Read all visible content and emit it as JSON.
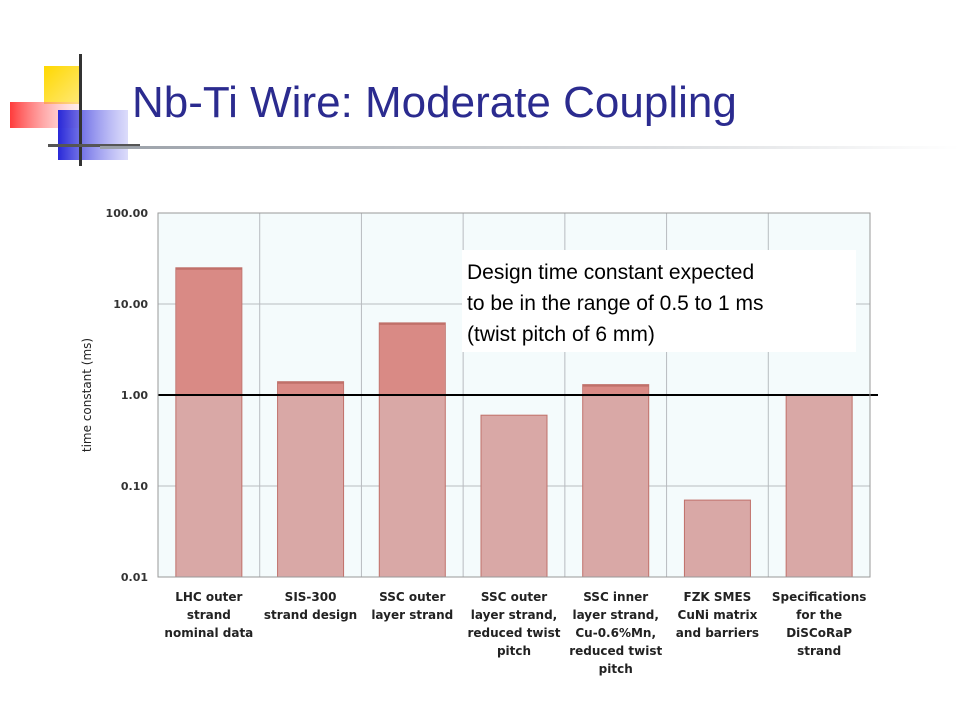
{
  "slide": {
    "title": "Nb-Ti Wire: Moderate Coupling"
  },
  "colors": {
    "title": "#2b2b8f",
    "bar_fill": "#d9a8a6",
    "bar_top_fill": "#d98a85",
    "bar_stroke": "#c0706a",
    "plot_bg": "#f4fbfc",
    "grid": "#b8bcc0",
    "reference_line": "#000000"
  },
  "chart_data": {
    "type": "bar",
    "yscale": "log",
    "ylim": [
      0.01,
      100
    ],
    "ylabel": "time constant (ms)",
    "yticks": [
      "100.00",
      "10.00",
      "1.00",
      "0.10",
      "0.01"
    ],
    "ytick_values": [
      100,
      10,
      1,
      0.1,
      0.01
    ],
    "grid": true,
    "categories": [
      [
        "LHC outer",
        "strand",
        "nominal data"
      ],
      [
        "SIS-300",
        "strand design"
      ],
      [
        "SSC outer",
        "layer strand"
      ],
      [
        "SSC outer",
        "layer strand,",
        "reduced twist",
        "pitch"
      ],
      [
        "SSC inner",
        "layer strand,",
        "Cu-0.6%Mn,",
        "reduced twist",
        "pitch"
      ],
      [
        "FZK SMES",
        "CuNi matrix",
        "and barriers"
      ],
      [
        "Specifications",
        "for the",
        "DiSCoRaP",
        "strand"
      ]
    ],
    "values": [
      25,
      1.4,
      6.2,
      0.6,
      1.3,
      0.07,
      1.0
    ],
    "reference_line": 1.0,
    "annotation": [
      "Design time constant expected",
      "to be in the range of 0.5 to 1 ms",
      "(twist pitch of 6 mm)"
    ]
  }
}
